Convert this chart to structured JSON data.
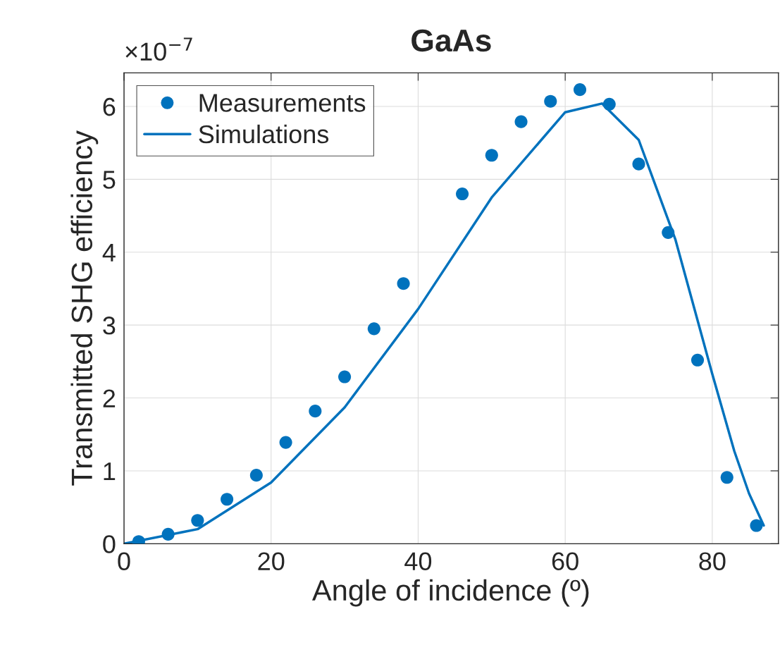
{
  "chart_data": {
    "type": "scatter",
    "title": "GaAs",
    "xlabel": "Angle of incidence (º)",
    "ylabel": "Transmitted SHG efficiency",
    "annotations": [
      "×10$^{−7}$"
    ],
    "series": [
      {
        "name": "Measurements",
        "color": "#0072bd",
        "marker": "circle",
        "x": [
          2,
          6,
          10,
          14,
          18,
          22,
          26,
          30,
          34,
          38,
          46,
          50,
          54,
          58,
          62,
          66,
          70,
          74,
          78,
          82,
          86
        ],
        "values": [
          0.03,
          0.13,
          0.32,
          0.61,
          0.94,
          1.39,
          1.82,
          2.29,
          2.95,
          3.57,
          4.8,
          5.33,
          5.79,
          6.07,
          6.23,
          6.03,
          5.21,
          4.27,
          2.52,
          0.91,
          0.25
        ]
      },
      {
        "name": "Simulations",
        "type": "line",
        "color": "#0072bd",
        "line_style": "solid",
        "x": [
          0,
          10,
          20,
          30,
          40,
          50,
          60,
          65,
          70,
          75,
          80,
          83,
          85,
          87
        ],
        "values": [
          0,
          0.2,
          0.84,
          1.87,
          3.22,
          4.75,
          5.92,
          6.04,
          5.54,
          4.17,
          2.33,
          1.27,
          0.69,
          0.25
        ]
      }
    ],
    "xlim": [
      0,
      89
    ],
    "ylim": [
      0,
      6.46
    ],
    "xticks": [
      0,
      20,
      40,
      60,
      80
    ],
    "yticks": [
      0,
      1,
      2,
      3,
      4,
      5,
      6
    ],
    "grid": true,
    "legend": "top left"
  }
}
